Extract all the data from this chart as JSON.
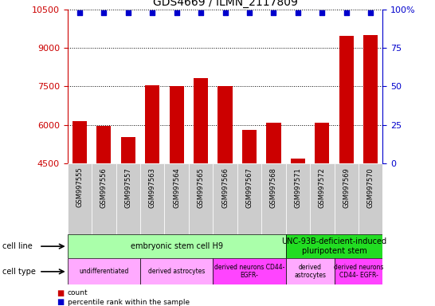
{
  "title": "GDS4669 / ILMN_2117809",
  "samples": [
    "GSM997555",
    "GSM997556",
    "GSM997557",
    "GSM997563",
    "GSM997564",
    "GSM997565",
    "GSM997566",
    "GSM997567",
    "GSM997568",
    "GSM997571",
    "GSM997572",
    "GSM997569",
    "GSM997570"
  ],
  "counts": [
    6150,
    5980,
    5550,
    7550,
    7520,
    7820,
    7520,
    5800,
    6080,
    4700,
    6080,
    9450,
    9480
  ],
  "ylim_left": [
    4500,
    10500
  ],
  "ylim_right": [
    0,
    100
  ],
  "yticks_left": [
    4500,
    6000,
    7500,
    9000,
    10500
  ],
  "yticks_right": [
    0,
    25,
    50,
    75,
    100
  ],
  "bar_color": "#cc0000",
  "dot_color": "#0000cc",
  "bar_width": 0.6,
  "cell_line_groups": [
    {
      "label": "embryonic stem cell H9",
      "start": 0,
      "end": 9,
      "color": "#aaffaa"
    },
    {
      "label": "UNC-93B-deficient-induced\npluripotent stem",
      "start": 9,
      "end": 13,
      "color": "#22dd22"
    }
  ],
  "cell_type_groups": [
    {
      "label": "undifferentiated",
      "start": 0,
      "end": 3,
      "color": "#ffaaff"
    },
    {
      "label": "derived astrocytes",
      "start": 3,
      "end": 6,
      "color": "#ffaaff"
    },
    {
      "label": "derived neurons CD44-\nEGFR-",
      "start": 6,
      "end": 9,
      "color": "#ff44ff"
    },
    {
      "label": "derived\nastrocytes",
      "start": 9,
      "end": 11,
      "color": "#ffaaff"
    },
    {
      "label": "derived neurons\nCD44- EGFR-",
      "start": 11,
      "end": 13,
      "color": "#ff44ff"
    }
  ],
  "sample_bg_color": "#cccccc",
  "title_fontsize": 10,
  "axis_fontsize": 8,
  "label_fontsize": 7,
  "sample_fontsize": 6,
  "group_fontsize": 7
}
